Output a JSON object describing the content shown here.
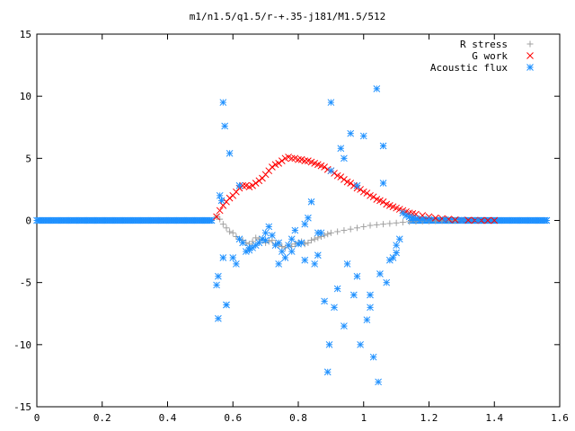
{
  "chart_data": {
    "type": "scatter",
    "title": "m1/n1.5/q1.5/r-+.35-j181/M1.5/512",
    "xlabel": "",
    "ylabel": "",
    "xlim": [
      0,
      1.6
    ],
    "ylim": [
      -15,
      15
    ],
    "x_ticks": [
      "0",
      "0.2",
      "0.4",
      "0.6",
      "0.8",
      "1",
      "1.2",
      "1.4",
      "1.6"
    ],
    "y_ticks": [
      "15",
      "10",
      "5",
      "0",
      "-5",
      "-10",
      "-15"
    ],
    "grid": false,
    "legend_position": "top-right",
    "series": [
      {
        "name": "R stress",
        "marker": "plus",
        "color": "#a0a0a0",
        "x": [
          0.55,
          0.56,
          0.57,
          0.58,
          0.59,
          0.6,
          0.61,
          0.62,
          0.63,
          0.64,
          0.65,
          0.66,
          0.67,
          0.68,
          0.69,
          0.7,
          0.71,
          0.72,
          0.73,
          0.74,
          0.75,
          0.76,
          0.77,
          0.78,
          0.79,
          0.8,
          0.81,
          0.82,
          0.83,
          0.84,
          0.85,
          0.86,
          0.87,
          0.88,
          0.89,
          0.9,
          0.92,
          0.94,
          0.96,
          0.98,
          1.0,
          1.02,
          1.04,
          1.06,
          1.08,
          1.1,
          1.12,
          1.14,
          1.16,
          1.18,
          1.2,
          1.22,
          1.24,
          1.26,
          1.28,
          1.3
        ],
        "y": [
          0.3,
          0.1,
          -0.3,
          -0.6,
          -0.9,
          -1.0,
          -1.3,
          -1.5,
          -1.6,
          -1.8,
          -1.9,
          -1.7,
          -1.4,
          -1.5,
          -1.6,
          -1.8,
          -1.7,
          -1.6,
          -1.9,
          -2.0,
          -2.1,
          -2.2,
          -2.0,
          -2.1,
          -1.9,
          -1.8,
          -1.7,
          -1.9,
          -1.8,
          -1.6,
          -1.5,
          -1.4,
          -1.3,
          -1.2,
          -1.1,
          -1.0,
          -0.9,
          -0.8,
          -0.7,
          -0.6,
          -0.5,
          -0.4,
          -0.35,
          -0.3,
          -0.25,
          -0.2,
          -0.15,
          -0.1,
          -0.08,
          -0.06,
          -0.05,
          -0.04,
          -0.03,
          -0.02,
          -0.01,
          0.0
        ]
      },
      {
        "name": "G work",
        "marker": "cross",
        "color": "#ff0000",
        "x": [
          0.55,
          0.56,
          0.57,
          0.58,
          0.59,
          0.6,
          0.61,
          0.62,
          0.63,
          0.64,
          0.65,
          0.66,
          0.67,
          0.68,
          0.69,
          0.7,
          0.71,
          0.72,
          0.73,
          0.74,
          0.75,
          0.76,
          0.77,
          0.78,
          0.79,
          0.8,
          0.81,
          0.82,
          0.83,
          0.84,
          0.85,
          0.86,
          0.87,
          0.88,
          0.89,
          0.9,
          0.91,
          0.92,
          0.93,
          0.94,
          0.95,
          0.96,
          0.97,
          0.98,
          0.99,
          1.0,
          1.01,
          1.02,
          1.03,
          1.04,
          1.05,
          1.06,
          1.07,
          1.08,
          1.09,
          1.1,
          1.11,
          1.12,
          1.13,
          1.14,
          1.15,
          1.16,
          1.18,
          1.2,
          1.22,
          1.24,
          1.26,
          1.28,
          1.3,
          1.32,
          1.34,
          1.36,
          1.38,
          1.4
        ],
        "y": [
          0.3,
          0.8,
          1.2,
          1.5,
          1.8,
          2.0,
          2.3,
          2.6,
          2.8,
          2.8,
          2.7,
          2.8,
          3.0,
          3.2,
          3.4,
          3.7,
          4.0,
          4.3,
          4.5,
          4.6,
          4.8,
          5.0,
          5.1,
          5.0,
          5.0,
          4.9,
          4.9,
          4.8,
          4.8,
          4.7,
          4.6,
          4.5,
          4.4,
          4.3,
          4.1,
          4.0,
          3.8,
          3.6,
          3.5,
          3.3,
          3.1,
          3.0,
          2.8,
          2.6,
          2.5,
          2.3,
          2.2,
          2.0,
          1.9,
          1.7,
          1.6,
          1.5,
          1.3,
          1.2,
          1.1,
          1.0,
          0.9,
          0.8,
          0.7,
          0.6,
          0.55,
          0.5,
          0.4,
          0.3,
          0.2,
          0.15,
          0.1,
          0.05,
          0.03,
          0.02,
          0.01,
          0.0,
          0.0,
          0.0
        ]
      },
      {
        "name": "Acoustic flux",
        "marker": "star",
        "color": "#1e90ff",
        "x": [
          0.55,
          0.555,
          0.56,
          0.565,
          0.57,
          0.575,
          0.58,
          0.59,
          0.6,
          0.61,
          0.62,
          0.63,
          0.64,
          0.65,
          0.66,
          0.67,
          0.68,
          0.69,
          0.7,
          0.71,
          0.72,
          0.73,
          0.74,
          0.75,
          0.76,
          0.77,
          0.78,
          0.79,
          0.8,
          0.81,
          0.82,
          0.83,
          0.84,
          0.85,
          0.86,
          0.87,
          0.88,
          0.89,
          0.895,
          0.9,
          0.91,
          0.92,
          0.93,
          0.94,
          0.95,
          0.96,
          0.97,
          0.98,
          0.99,
          1.0,
          1.01,
          1.02,
          1.03,
          1.04,
          1.045,
          1.05,
          1.06,
          1.07,
          1.08,
          1.09,
          1.1,
          1.11,
          1.12,
          1.13,
          1.14,
          1.15,
          1.16,
          1.18,
          1.2,
          1.25,
          1.3,
          1.35,
          0.555,
          0.57,
          0.58,
          0.62,
          0.65,
          0.7,
          0.74,
          0.78,
          0.82,
          0.86,
          0.9,
          0.94,
          0.98,
          1.02,
          1.06,
          1.1
        ],
        "y": [
          -5.2,
          -7.9,
          2.0,
          1.6,
          9.5,
          7.6,
          -6.8,
          5.4,
          -3.0,
          -3.5,
          2.8,
          -1.8,
          -2.5,
          -2.4,
          -2.2,
          -2.0,
          -1.8,
          -1.5,
          -1.0,
          -0.5,
          -1.2,
          -2.0,
          -3.5,
          -2.5,
          -3.0,
          -2.0,
          -1.5,
          -0.8,
          -1.9,
          -1.8,
          -0.3,
          0.2,
          1.5,
          -3.5,
          -2.8,
          -1.0,
          -6.5,
          -12.2,
          -10.0,
          9.5,
          -7.0,
          -5.5,
          5.8,
          -8.5,
          -3.5,
          7.0,
          -6.0,
          2.8,
          -10.0,
          6.8,
          -8.0,
          -7.0,
          -11.0,
          10.6,
          -13.0,
          -4.3,
          6.0,
          -5.0,
          -3.2,
          -3.0,
          -2.6,
          -1.5,
          0.6,
          0.4,
          0.3,
          0.2,
          0.15,
          0.1,
          0.08,
          0.05,
          0.02,
          0.0,
          -4.5,
          -3.0,
          -6.8,
          -1.5,
          -2.2,
          -1.6,
          -1.8,
          -2.5,
          -3.2,
          -1.0,
          4.0,
          5.0,
          -4.5,
          -6.0,
          3.0,
          -2.0
        ]
      }
    ],
    "baseline_series": {
      "name": "Acoustic flux",
      "x_range": [
        0,
        1.56
      ],
      "y": 0
    }
  }
}
